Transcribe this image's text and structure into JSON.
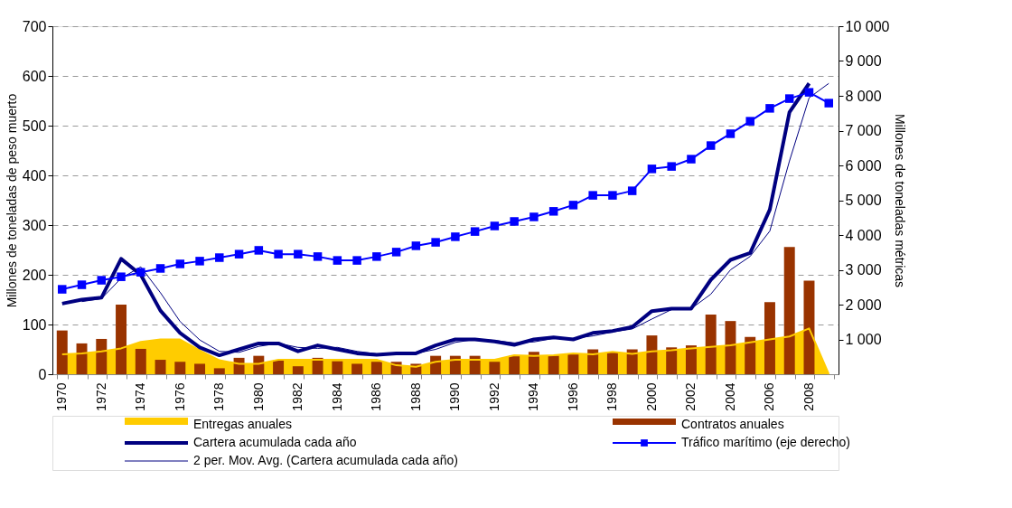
{
  "chart_data": {
    "type": "bar",
    "categories": [
      "1970",
      null,
      "1972",
      null,
      "1974",
      null,
      "1976",
      null,
      "1978",
      null,
      "1980",
      null,
      "1982",
      null,
      "1984",
      null,
      "1986",
      null,
      "1988",
      null,
      "1990",
      null,
      "1992",
      null,
      "1994",
      null,
      "1996",
      null,
      "1998",
      null,
      "2000",
      null,
      "2002",
      null,
      "2004",
      null,
      "2006",
      null,
      "2008",
      null
    ],
    "ylabel": "Millones de toneladas de peso muerto",
    "y2label": "Millones de toneladas métricas",
    "ylim": [
      0,
      700
    ],
    "yticks": [
      0,
      100,
      200,
      300,
      400,
      500,
      600,
      700
    ],
    "y2lim": [
      0,
      10000
    ],
    "y2ticks": [
      {
        "value": 1000,
        "label": "1 000"
      },
      {
        "value": 2000,
        "label": "2 000"
      },
      {
        "value": 3000,
        "label": "3 000"
      },
      {
        "value": 4000,
        "label": "4 000"
      },
      {
        "value": 5000,
        "label": "5 000"
      },
      {
        "value": 6000,
        "label": "6 000"
      },
      {
        "value": 7000,
        "label": "7 000"
      },
      {
        "value": 8000,
        "label": "8 000"
      },
      {
        "value": 9000,
        "label": "9 000"
      },
      {
        "value": 10000,
        "label": "10 000"
      }
    ],
    "grid": "y",
    "legend": "bottom",
    "series": [
      {
        "name": "Entregas anuales",
        "type": "area",
        "color": "#ffcc00",
        "values": [
          40,
          42,
          46,
          52,
          65,
          70,
          70,
          48,
          28,
          21,
          21,
          29,
          29,
          29,
          29,
          29,
          29,
          18,
          15,
          25,
          29,
          29,
          29,
          38,
          37,
          38,
          42,
          40,
          45,
          41,
          46,
          48,
          52,
          55,
          58,
          64,
          70,
          76,
          92,
          0
        ]
      },
      {
        "name": "Contratos anuales",
        "color": "#993300",
        "values": [
          88,
          62,
          71,
          140,
          51,
          29,
          25,
          21,
          12,
          33,
          37,
          28,
          16,
          33,
          26,
          21,
          25,
          25,
          21,
          37,
          37,
          37,
          25,
          37,
          45,
          37,
          41,
          50,
          45,
          50,
          78,
          54,
          58,
          120,
          107,
          75,
          145,
          256,
          188,
          null
        ]
      },
      {
        "name": "Cartera acumulada cada año",
        "type": "line",
        "color": "#000080",
        "marker": "none",
        "values": [
          142,
          150,
          154,
          232,
          200,
          128,
          83,
          54,
          38,
          50,
          62,
          62,
          46,
          58,
          50,
          42,
          39,
          42,
          42,
          58,
          70,
          70,
          66,
          59,
          70,
          74,
          70,
          83,
          87,
          95,
          127,
          132,
          132,
          190,
          230,
          244,
          331,
          527,
          585,
          null
        ]
      },
      {
        "name": "Tráfico marítimo (eje derecho)",
        "type": "line",
        "color": "#0000ff",
        "marker": "square",
        "axis": "y2",
        "values": [
          2440,
          2570,
          2700,
          2800,
          2930,
          3040,
          3170,
          3250,
          3350,
          3450,
          3560,
          3450,
          3450,
          3380,
          3270,
          3270,
          3380,
          3510,
          3690,
          3790,
          3950,
          4100,
          4260,
          4390,
          4520,
          4680,
          4860,
          5140,
          5140,
          5270,
          5900,
          5970,
          6180,
          6570,
          6910,
          7270,
          7640,
          7920,
          8100,
          7790
        ]
      },
      {
        "name": "2 per. Mov. Avg. (Cartera acumulada cada año)",
        "type": "line",
        "color": "#000080",
        "marker": "none",
        "values": [
          null,
          146,
          152,
          193,
          216,
          164,
          106,
          69,
          46,
          44,
          56,
          62,
          54,
          52,
          54,
          46,
          41,
          41,
          42,
          50,
          64,
          70,
          68,
          63,
          65,
          72,
          72,
          77,
          85,
          91,
          111,
          130,
          132,
          161,
          210,
          237,
          288,
          429,
          556,
          585
        ]
      }
    ]
  }
}
